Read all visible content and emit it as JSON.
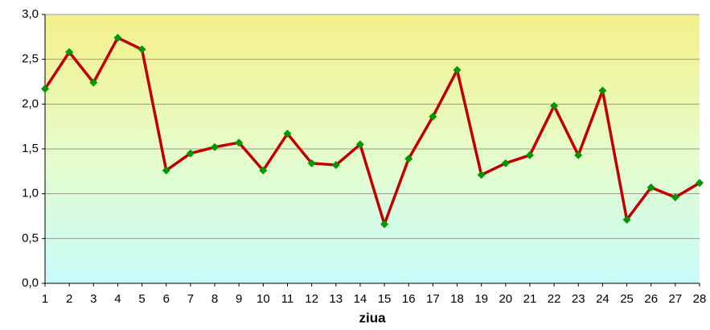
{
  "chart_data": {
    "type": "line",
    "x_label": "ziua",
    "categories": [
      "1",
      "2",
      "3",
      "4",
      "5",
      "6",
      "7",
      "8",
      "9",
      "10",
      "11",
      "12",
      "13",
      "14",
      "15",
      "16",
      "17",
      "18",
      "19",
      "20",
      "21",
      "22",
      "23",
      "24",
      "25",
      "26",
      "27",
      "28"
    ],
    "series": [
      {
        "color": "#c00000",
        "marker_color": "#009900",
        "values": [
          2.17,
          2.58,
          2.24,
          2.74,
          2.61,
          1.26,
          1.45,
          1.52,
          1.57,
          1.26,
          1.67,
          1.34,
          1.32,
          1.55,
          0.66,
          1.39,
          1.86,
          2.38,
          1.21,
          1.34,
          1.43,
          1.98,
          1.43,
          2.15,
          0.71,
          1.07,
          0.96,
          1.12
        ]
      }
    ],
    "ylim": [
      0,
      3
    ],
    "yticks": [
      {
        "value": 0,
        "label": "0,0"
      },
      {
        "value": 0.5,
        "label": "0,5"
      },
      {
        "value": 1,
        "label": "1,0"
      },
      {
        "value": 1.5,
        "label": "1,5"
      },
      {
        "value": 2,
        "label": "2,0"
      },
      {
        "value": 2.5,
        "label": "2,5"
      },
      {
        "value": 3,
        "label": "3,0"
      }
    ],
    "grid": true
  }
}
